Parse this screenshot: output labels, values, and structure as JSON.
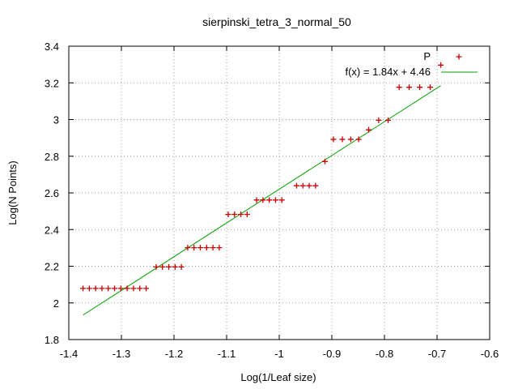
{
  "chart_data": {
    "type": "scatter",
    "title": "sierpinski_tetra_3_normal_50",
    "xlabel": "Log(1/Leaf size)",
    "ylabel": "Log(N Points)",
    "xlim": [
      -1.4,
      -0.6
    ],
    "ylim": [
      1.8,
      3.4
    ],
    "xticks": [
      -1.4,
      -1.3,
      -1.2,
      -1.1,
      -1.0,
      -0.9,
      -0.8,
      -0.7,
      -0.6
    ],
    "xtick_labels": [
      "-1.4",
      "-1.3",
      "-1.2",
      "-1.1",
      "-1",
      "-0.9",
      "-0.8",
      "-0.7",
      "-0.6"
    ],
    "yticks": [
      1.8,
      2.0,
      2.2,
      2.4,
      2.6,
      2.8,
      3.0,
      3.2,
      3.4
    ],
    "ytick_labels": [
      "1.8",
      "2",
      "2.2",
      "2.4",
      "2.6",
      "2.8",
      "3",
      "3.2",
      "3.4"
    ],
    "grid": true,
    "legend_position": "top-right",
    "series": [
      {
        "name": "P",
        "marker": "+",
        "color": "#cc0000",
        "points": [
          [
            -1.373,
            2.079
          ],
          [
            -1.361,
            2.079
          ],
          [
            -1.349,
            2.079
          ],
          [
            -1.337,
            2.079
          ],
          [
            -1.325,
            2.079
          ],
          [
            -1.313,
            2.079
          ],
          [
            -1.301,
            2.079
          ],
          [
            -1.289,
            2.079
          ],
          [
            -1.277,
            2.079
          ],
          [
            -1.265,
            2.079
          ],
          [
            -1.253,
            2.079
          ],
          [
            -1.234,
            2.196
          ],
          [
            -1.222,
            2.196
          ],
          [
            -1.21,
            2.196
          ],
          [
            -1.198,
            2.196
          ],
          [
            -1.186,
            2.196
          ],
          [
            -1.174,
            2.301
          ],
          [
            -1.162,
            2.301
          ],
          [
            -1.15,
            2.301
          ],
          [
            -1.138,
            2.301
          ],
          [
            -1.126,
            2.301
          ],
          [
            -1.114,
            2.301
          ],
          [
            -1.097,
            2.483
          ],
          [
            -1.085,
            2.483
          ],
          [
            -1.073,
            2.483
          ],
          [
            -1.061,
            2.483
          ],
          [
            -1.043,
            2.561
          ],
          [
            -1.031,
            2.561
          ],
          [
            -1.019,
            2.561
          ],
          [
            -1.007,
            2.561
          ],
          [
            -0.995,
            2.561
          ],
          [
            -0.967,
            2.639
          ],
          [
            -0.955,
            2.639
          ],
          [
            -0.943,
            2.639
          ],
          [
            -0.931,
            2.639
          ],
          [
            -0.913,
            2.771
          ],
          [
            -0.897,
            2.892
          ],
          [
            -0.88,
            2.892
          ],
          [
            -0.864,
            2.892
          ],
          [
            -0.849,
            2.892
          ],
          [
            -0.83,
            2.944
          ],
          [
            -0.811,
            2.996
          ],
          [
            -0.793,
            2.996
          ],
          [
            -0.772,
            3.176
          ],
          [
            -0.753,
            3.176
          ],
          [
            -0.733,
            3.176
          ],
          [
            -0.713,
            3.176
          ],
          [
            -0.693,
            3.297
          ]
        ]
      },
      {
        "name": "f(x) = 1.84x + 4.46",
        "type": "line",
        "color": "#00a000",
        "slope": 1.84,
        "intercept": 4.46,
        "x_range": [
          -1.373,
          -0.693
        ]
      }
    ]
  }
}
